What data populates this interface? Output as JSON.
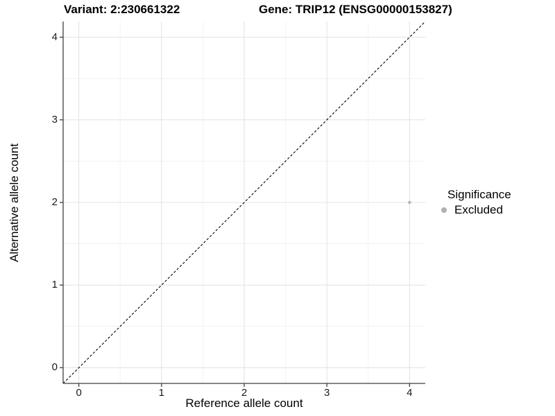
{
  "chart_data": {
    "type": "scatter",
    "title_left": "Variant: 2:230661322",
    "title_right": "Gene: TRIP12 (ENSG00000153827)",
    "xlabel": "Reference allele count",
    "ylabel": "Alternative allele count",
    "xlim": [
      -0.19,
      4.19
    ],
    "ylim": [
      -0.19,
      4.19
    ],
    "x_ticks": [
      0,
      1,
      2,
      3,
      4
    ],
    "y_ticks": [
      0,
      1,
      2,
      3,
      4
    ],
    "x_minor_ticks": [
      0.5,
      1.5,
      2.5,
      3.5
    ],
    "y_minor_ticks": [
      0.5,
      1.5,
      2.5,
      3.5
    ],
    "grid": {
      "on": true,
      "major_color": "#e4e4e4",
      "minor_color": "#f1f1f1"
    },
    "axis_line_color": "#3f3f3f",
    "tick_mark_color": "#3f3f3f",
    "identity_line": {
      "equation": "y = x",
      "style": "dashed",
      "color": "#000000"
    },
    "series": [
      {
        "name": "Excluded",
        "color": "#b3b3b3",
        "point_radius": 2.2,
        "points": [
          {
            "x": 4,
            "y": 2
          }
        ]
      }
    ],
    "legend": {
      "title": "Significance",
      "position": "right",
      "items": [
        {
          "label": "Excluded",
          "color": "#b0b0b0"
        }
      ]
    }
  }
}
